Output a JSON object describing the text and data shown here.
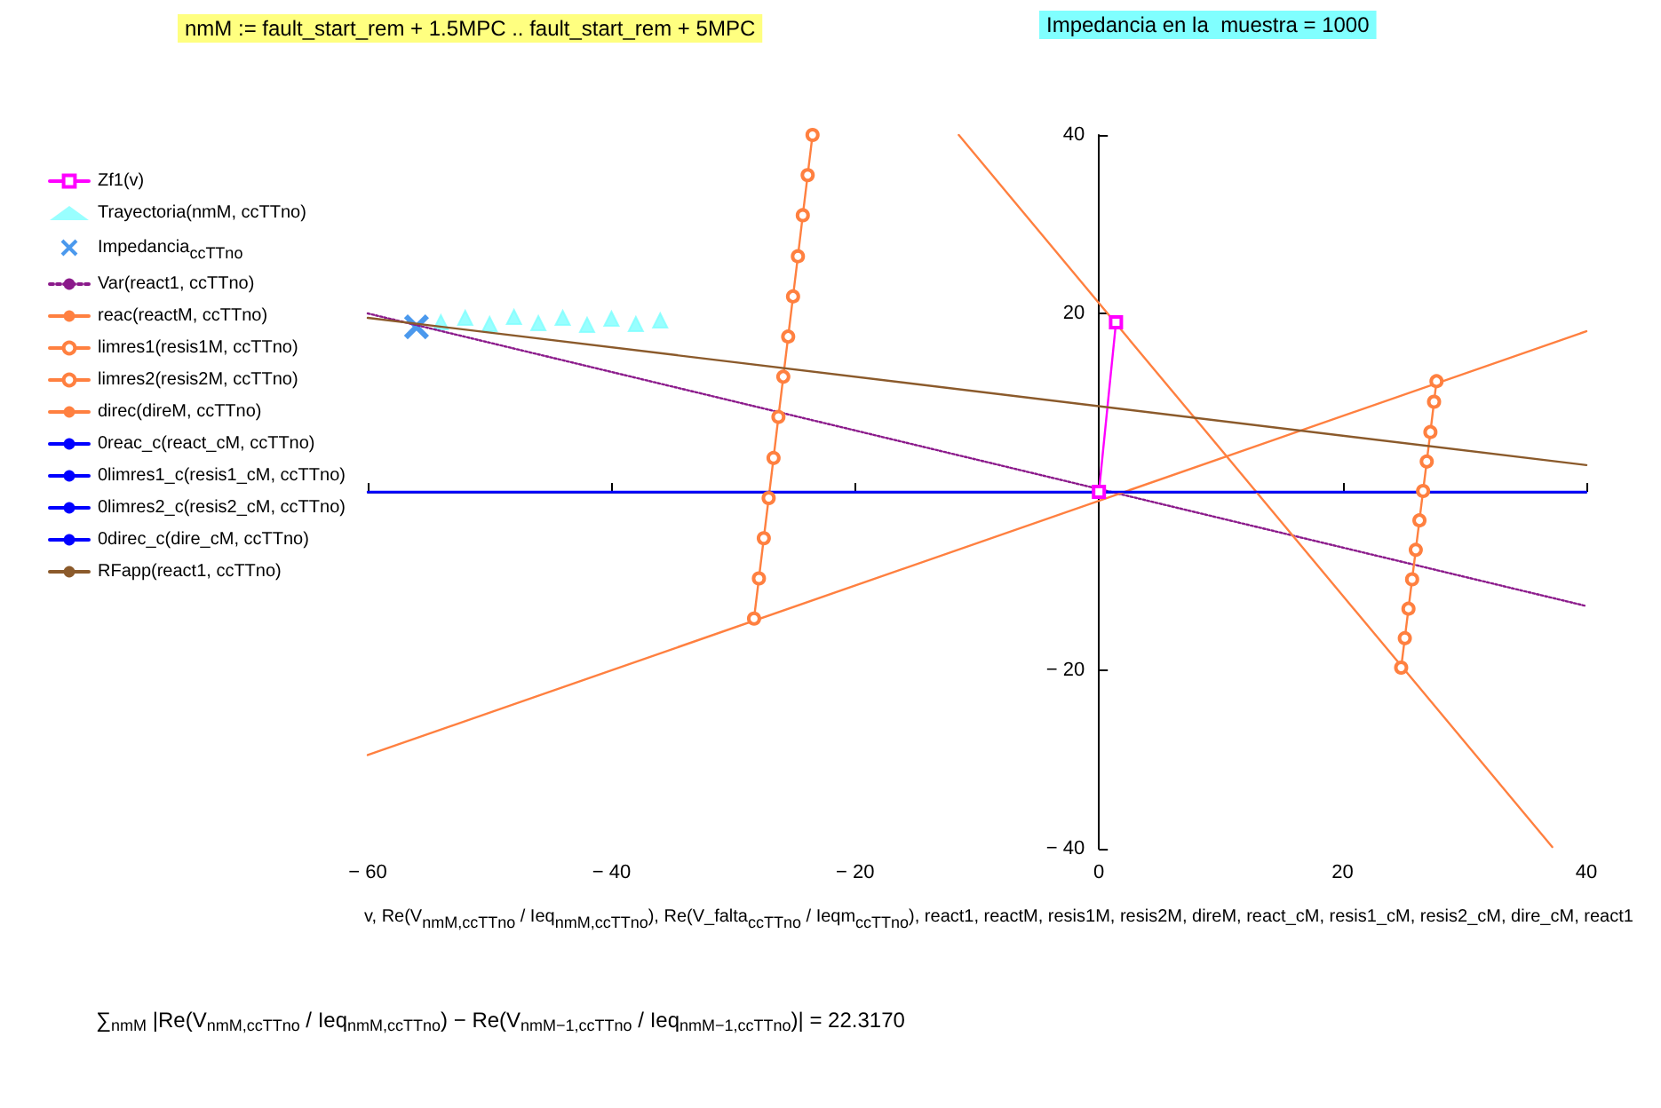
{
  "chart_data": {
    "type": "line",
    "xlabel": "v, Re(V$_{nmM,ccTTno}$ / Ieq$_{nmM,ccTTno}$), Re(V_falta$_{ccTTno}$ / Ieqm$_{ccTTno}$), react1, reactM, resis1M, resis2M, direM, react_cM, resis1_cM, resis2_cM, dire_cM, react1",
    "annotations": [
      "nmM := fault_start_rem + 1.5MPC .. fault_start_rem + 5MPC",
      "Impedancia en la  muestra = 1000",
      "∑$_{nmM}$ |Re(V$_{nmM,ccTTno}$ / Ieq$_{nmM,ccTTno}$) − Re(V$_{nmM−1,ccTTno}$ / Ieq$_{nmM−1,ccTTno}$)| = 22.3170"
    ],
    "xlim": [
      -60,
      40
    ],
    "ylim": [
      -40,
      40
    ],
    "xticks": [
      {
        "value": -60,
        "label": "− 60"
      },
      {
        "value": -40,
        "label": "− 40"
      },
      {
        "value": -20,
        "label": "− 20"
      },
      0,
      20,
      40
    ],
    "yticks": [
      {
        "value": -40,
        "label": "− 40"
      },
      {
        "value": -20,
        "label": "− 20"
      },
      20,
      40
    ],
    "grid": false,
    "legend": "left",
    "series": [
      {
        "name": "Zf1(v)",
        "color": "#ff00ff",
        "marker": "square",
        "x": [
          0,
          1.4
        ],
        "values": [
          0,
          19
        ]
      },
      {
        "name": "Trayectoria(nmM, ccTTno)",
        "color": "#80ffff",
        "type": "scatter",
        "marker": "triangle",
        "x": [
          -54,
          -52,
          -50,
          -48,
          -46,
          -44,
          -42,
          -40,
          -38,
          -36
        ],
        "values": [
          19,
          19.5,
          18.8,
          19.6,
          18.9,
          19.5,
          18.7,
          19.4,
          18.8,
          19.2
        ]
      },
      {
        "name": "Impedancia$_{ccTTno}$",
        "color": "#1e7fe8",
        "type": "scatter",
        "marker": "cross",
        "x": [
          -56
        ],
        "values": [
          18.5
        ]
      },
      {
        "name": "Var(react1, ccTTno)",
        "color": "#8b1a8b",
        "line_style": "dotted",
        "x": [
          -60,
          40
        ],
        "values": [
          20,
          -12.8
        ]
      },
      {
        "name": "reac(reactM, ccTTno)",
        "color": "#ff8040",
        "x": [
          -11.5,
          37.2
        ],
        "values": [
          40,
          -39.8
        ]
      },
      {
        "name": "limres1(resis1M, ccTTno)",
        "color": "#ff8040",
        "marker": "circle",
        "x": [
          -28.3,
          -27.9,
          -27.5,
          -27.1,
          -26.7,
          -26.3,
          -25.9,
          -25.5,
          -25.1,
          -24.7,
          -24.3,
          -23.9,
          -23.5
        ],
        "values": [
          -14.2,
          -9.7,
          -5.2,
          -0.7,
          3.8,
          8.4,
          12.9,
          17.4,
          21.9,
          26.4,
          31,
          35.5,
          40
        ]
      },
      {
        "name": "limres2(resis2M, ccTTno)",
        "color": "#ff8040",
        "marker": "circle",
        "x": [
          24.8,
          25.1,
          25.4,
          25.7,
          26,
          26.3,
          26.6,
          26.9,
          27.2,
          27.5,
          27.7
        ],
        "values": [
          -19.7,
          -16.4,
          -13.1,
          -9.8,
          -6.5,
          -3.2,
          0.1,
          3.4,
          6.7,
          10.1,
          12.4
        ]
      },
      {
        "name": "direc(direM, ccTTno)",
        "color": "#ff8040",
        "x": [
          -60,
          40
        ],
        "values": [
          -29.5,
          18
        ]
      },
      {
        "name": "0reac_c(react_cM, ccTTno)",
        "color": "#0000ff",
        "x": [
          -60,
          40
        ],
        "values": [
          0,
          0
        ]
      },
      {
        "name": "0limres1_c(resis1_cM, ccTTno)",
        "color": "#0000ff"
      },
      {
        "name": "0limres2_c(resis2_cM, ccTTno)",
        "color": "#0000ff"
      },
      {
        "name": "0direc_c(dire_cM, ccTTno)",
        "color": "#0000ff"
      },
      {
        "name": "RFapp(react1, ccTTno)",
        "color": "#8b5a2b",
        "x": [
          -60,
          40
        ],
        "values": [
          19.5,
          3
        ]
      }
    ]
  }
}
